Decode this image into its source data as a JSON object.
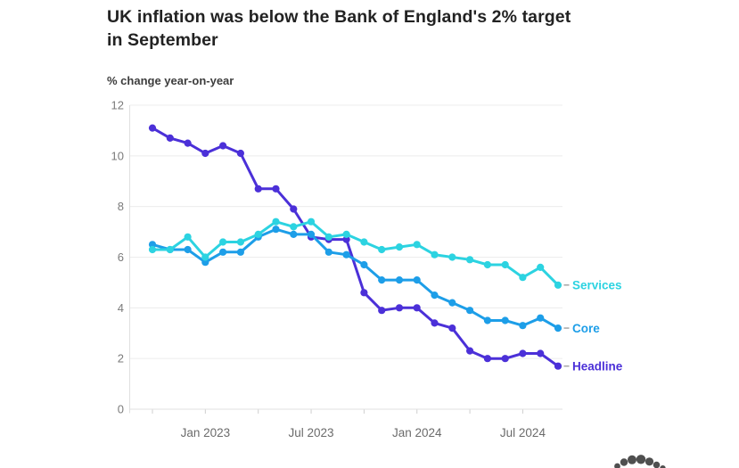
{
  "header": {
    "title_lines": [
      "UK inflation was below the Bank of England's 2% target",
      "in September"
    ],
    "subtitle": "% change year-on-year"
  },
  "chart_data": {
    "type": "line",
    "title": "UK inflation was below the Bank of England's 2% target in September",
    "ylabel": "% change year-on-year",
    "xlabel": "",
    "grid": "horizontal",
    "legend_position": "end-of-line labels, right side",
    "ylim": [
      0,
      12
    ],
    "yticks": [
      0,
      2,
      4,
      6,
      8,
      10,
      12
    ],
    "x": [
      "Oct 2022",
      "Nov 2022",
      "Dec 2022",
      "Jan 2023",
      "Feb 2023",
      "Mar 2023",
      "Apr 2023",
      "May 2023",
      "Jun 2023",
      "Jul 2023",
      "Aug 2023",
      "Sep 2023",
      "Oct 2023",
      "Nov 2023",
      "Dec 2023",
      "Jan 2024",
      "Feb 2024",
      "Mar 2024",
      "Apr 2024",
      "May 2024",
      "Jun 2024",
      "Jul 2024",
      "Aug 2024",
      "Sep 2024"
    ],
    "xticks_quarterly_indices": [
      0,
      3,
      6,
      9,
      12,
      15,
      18,
      21
    ],
    "xtick_labels": [
      {
        "index": 3,
        "label": "Jan 2023"
      },
      {
        "index": 9,
        "label": "Jul 2023"
      },
      {
        "index": 15,
        "label": "Jan 2024"
      },
      {
        "index": 21,
        "label": "Jul 2024"
      }
    ],
    "series": [
      {
        "id": "headline",
        "name": "Headline",
        "color": "#4b30d8",
        "values": [
          11.1,
          10.7,
          10.5,
          10.1,
          10.4,
          10.1,
          8.7,
          8.7,
          7.9,
          6.8,
          6.7,
          6.7,
          4.6,
          3.9,
          4.0,
          4.0,
          3.4,
          3.2,
          2.3,
          2.0,
          2.0,
          2.2,
          2.2,
          1.7
        ]
      },
      {
        "id": "core",
        "name": "Core",
        "color": "#1d9ee8",
        "values": [
          6.5,
          6.3,
          6.3,
          5.8,
          6.2,
          6.2,
          6.8,
          7.1,
          6.9,
          6.9,
          6.2,
          6.1,
          5.7,
          5.1,
          5.1,
          5.1,
          4.5,
          4.2,
          3.9,
          3.5,
          3.5,
          3.3,
          3.6,
          3.2
        ]
      },
      {
        "id": "services",
        "name": "Services",
        "color": "#2cd3e1",
        "values": [
          6.3,
          6.3,
          6.8,
          6.0,
          6.6,
          6.6,
          6.9,
          7.4,
          7.2,
          7.4,
          6.8,
          6.9,
          6.6,
          6.3,
          6.4,
          6.5,
          6.1,
          6.0,
          5.9,
          5.7,
          5.7,
          5.2,
          5.6,
          4.9
        ]
      }
    ],
    "colors": {
      "grid": "#ececec",
      "axis": "#e0e0e0",
      "tick": "#cfcfcf",
      "y_label": "#7b7b7b",
      "x_label": "#6b6b6b",
      "legend_dash": "#a6a6a6"
    }
  },
  "branding": {
    "logo": "dot-cluster-logo",
    "color": "#4f4f4f"
  }
}
